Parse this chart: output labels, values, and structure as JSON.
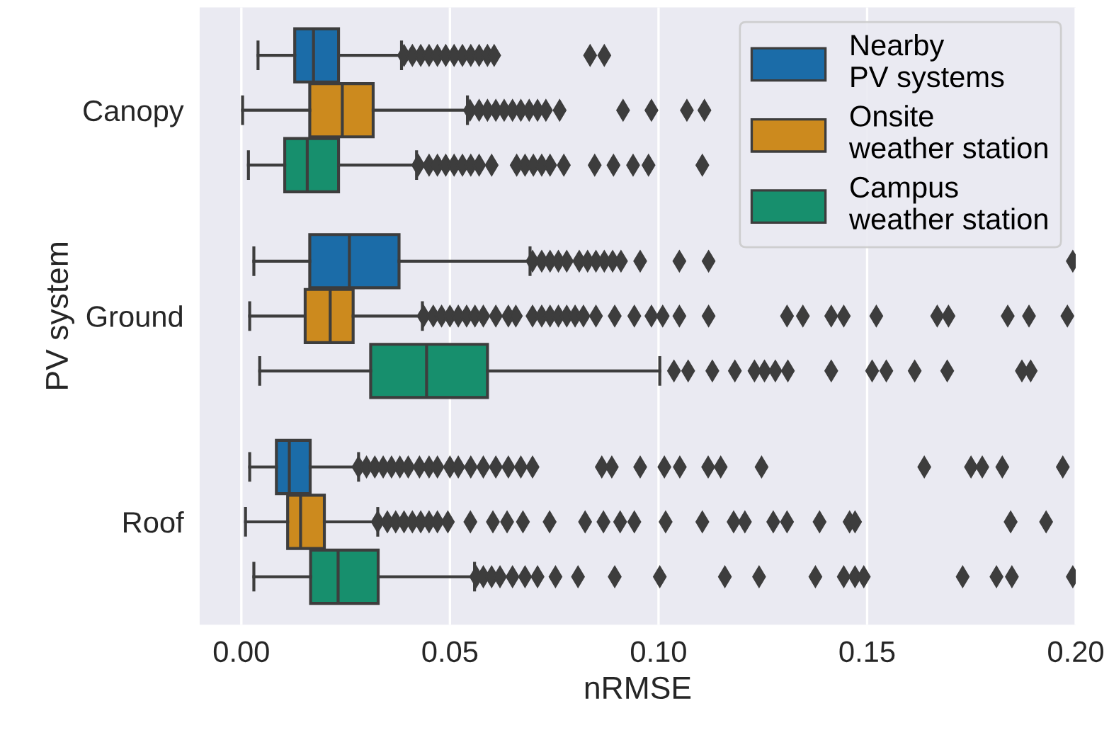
{
  "chart_data": {
    "type": "box",
    "orientation": "horizontal",
    "xlabel": "nRMSE",
    "ylabel": "PV system",
    "categories": [
      "Canopy",
      "Ground",
      "Roof"
    ],
    "xlim": [
      -0.01,
      0.2
    ],
    "xticks": [
      {
        "value": 0,
        "label": "0.00"
      },
      0.05,
      {
        "value": 0.1,
        "label": "0.10"
      },
      0.15,
      {
        "value": 0.2,
        "label": "0.20"
      }
    ],
    "grid": "x",
    "legend": "top right",
    "marker": "diamond",
    "series": [
      {
        "name": "Nearby\nPV systems",
        "color": "#1b6ca8",
        "boxes": [
          {
            "low": 0.004,
            "q1": 0.0128,
            "median": 0.0173,
            "q3": 0.0233,
            "high": 0.0384,
            "outliers": [
              0.039,
              0.041,
              0.043,
              0.045,
              0.047,
              0.049,
              0.051,
              0.053,
              0.055,
              0.057,
              0.059,
              0.0606,
              0.0836,
              0.087
            ]
          },
          {
            "low": 0.003,
            "q1": 0.0164,
            "median": 0.0259,
            "q3": 0.0378,
            "high": 0.0692,
            "outliers": [
              0.0698,
              0.072,
              0.074,
              0.076,
              0.078,
              0.081,
              0.083,
              0.085,
              0.087,
              0.089,
              0.091,
              0.0956,
              0.105,
              0.112,
              0.1993
            ]
          },
          {
            "low": 0.002,
            "q1": 0.0084,
            "median": 0.0115,
            "q3": 0.0165,
            "high": 0.0281,
            "outliers": [
              0.0281,
              0.03,
              0.032,
              0.034,
              0.036,
              0.038,
              0.04,
              0.0427,
              0.045,
              0.047,
              0.05,
              0.052,
              0.055,
              0.058,
              0.061,
              0.064,
              0.067,
              0.0698,
              0.0864,
              0.0888,
              0.0956,
              0.1014,
              0.1051,
              0.1119,
              0.1149,
              0.1247,
              0.1637,
              0.1749,
              0.1776,
              0.1824,
              0.1969
            ]
          }
        ]
      },
      {
        "name": "Onsite\nweather station",
        "color": "#cc8a1e",
        "boxes": [
          {
            "low": 0.0003,
            "q1": 0.0164,
            "median": 0.0242,
            "q3": 0.0316,
            "high": 0.0542,
            "outliers": [
              0.0548,
              0.057,
              0.059,
              0.061,
              0.063,
              0.065,
              0.067,
              0.069,
              0.071,
              0.073,
              0.0763,
              0.0915,
              0.0983,
              0.1068,
              0.111
            ]
          },
          {
            "low": 0.002,
            "q1": 0.0153,
            "median": 0.0213,
            "q3": 0.0268,
            "high": 0.0434,
            "outliers": [
              0.0437,
              0.046,
              0.048,
              0.05,
              0.052,
              0.054,
              0.056,
              0.058,
              0.061,
              0.064,
              0.0658,
              0.0698,
              0.072,
              0.074,
              0.076,
              0.078,
              0.08,
              0.082,
              0.085,
              0.0895,
              0.0942,
              0.0983,
              0.101,
              0.105,
              0.112,
              0.1308,
              0.1346,
              0.1414,
              0.1444,
              0.1522,
              0.1668,
              0.1695,
              0.1837,
              0.1888,
              0.198
            ]
          },
          {
            "low": 0.001,
            "q1": 0.0111,
            "median": 0.0142,
            "q3": 0.0199,
            "high": 0.0327,
            "outliers": [
              0.0327,
              0.035,
              0.037,
              0.039,
              0.041,
              0.043,
              0.045,
              0.047,
              0.0495,
              0.0549,
              0.0603,
              0.0637,
              0.0675,
              0.0739,
              0.0824,
              0.0868,
              0.0908,
              0.0942,
              0.1017,
              0.1105,
              0.118,
              0.1207,
              0.1275,
              0.1308,
              0.1386,
              0.1458,
              0.1471,
              0.1844,
              0.1929
            ]
          }
        ]
      },
      {
        "name": "Campus\nweather station",
        "color": "#178f6d",
        "boxes": [
          {
            "low": 0.0017,
            "q1": 0.0104,
            "median": 0.0158,
            "q3": 0.0233,
            "high": 0.042,
            "outliers": [
              0.0424,
              0.045,
              0.047,
              0.049,
              0.051,
              0.053,
              0.055,
              0.057,
              0.06,
              0.066,
              0.068,
              0.07,
              0.072,
              0.074,
              0.0773,
              0.0847,
              0.0892,
              0.0939,
              0.0976,
              0.1105
            ]
          },
          {
            "low": 0.0044,
            "q1": 0.031,
            "median": 0.0444,
            "q3": 0.059,
            "high": 0.1003,
            "outliers": [
              0.1037,
              0.1071,
              0.1129,
              0.1183,
              0.123,
              0.1254,
              0.128,
              0.131,
              0.1414,
              0.1512,
              0.1546,
              0.1614,
              0.1692,
              0.1871,
              0.1892
            ]
          },
          {
            "low": 0.003,
            "q1": 0.0166,
            "median": 0.0232,
            "q3": 0.0328,
            "high": 0.0559,
            "outliers": [
              0.0563,
              0.058,
              0.06,
              0.062,
              0.065,
              0.068,
              0.071,
              0.0753,
              0.0807,
              0.0895,
              0.1003,
              0.1159,
              0.1241,
              0.1376,
              0.1444,
              0.1471,
              0.1492,
              0.1729,
              0.181,
              0.1847,
              0.1993
            ]
          }
        ]
      }
    ]
  }
}
